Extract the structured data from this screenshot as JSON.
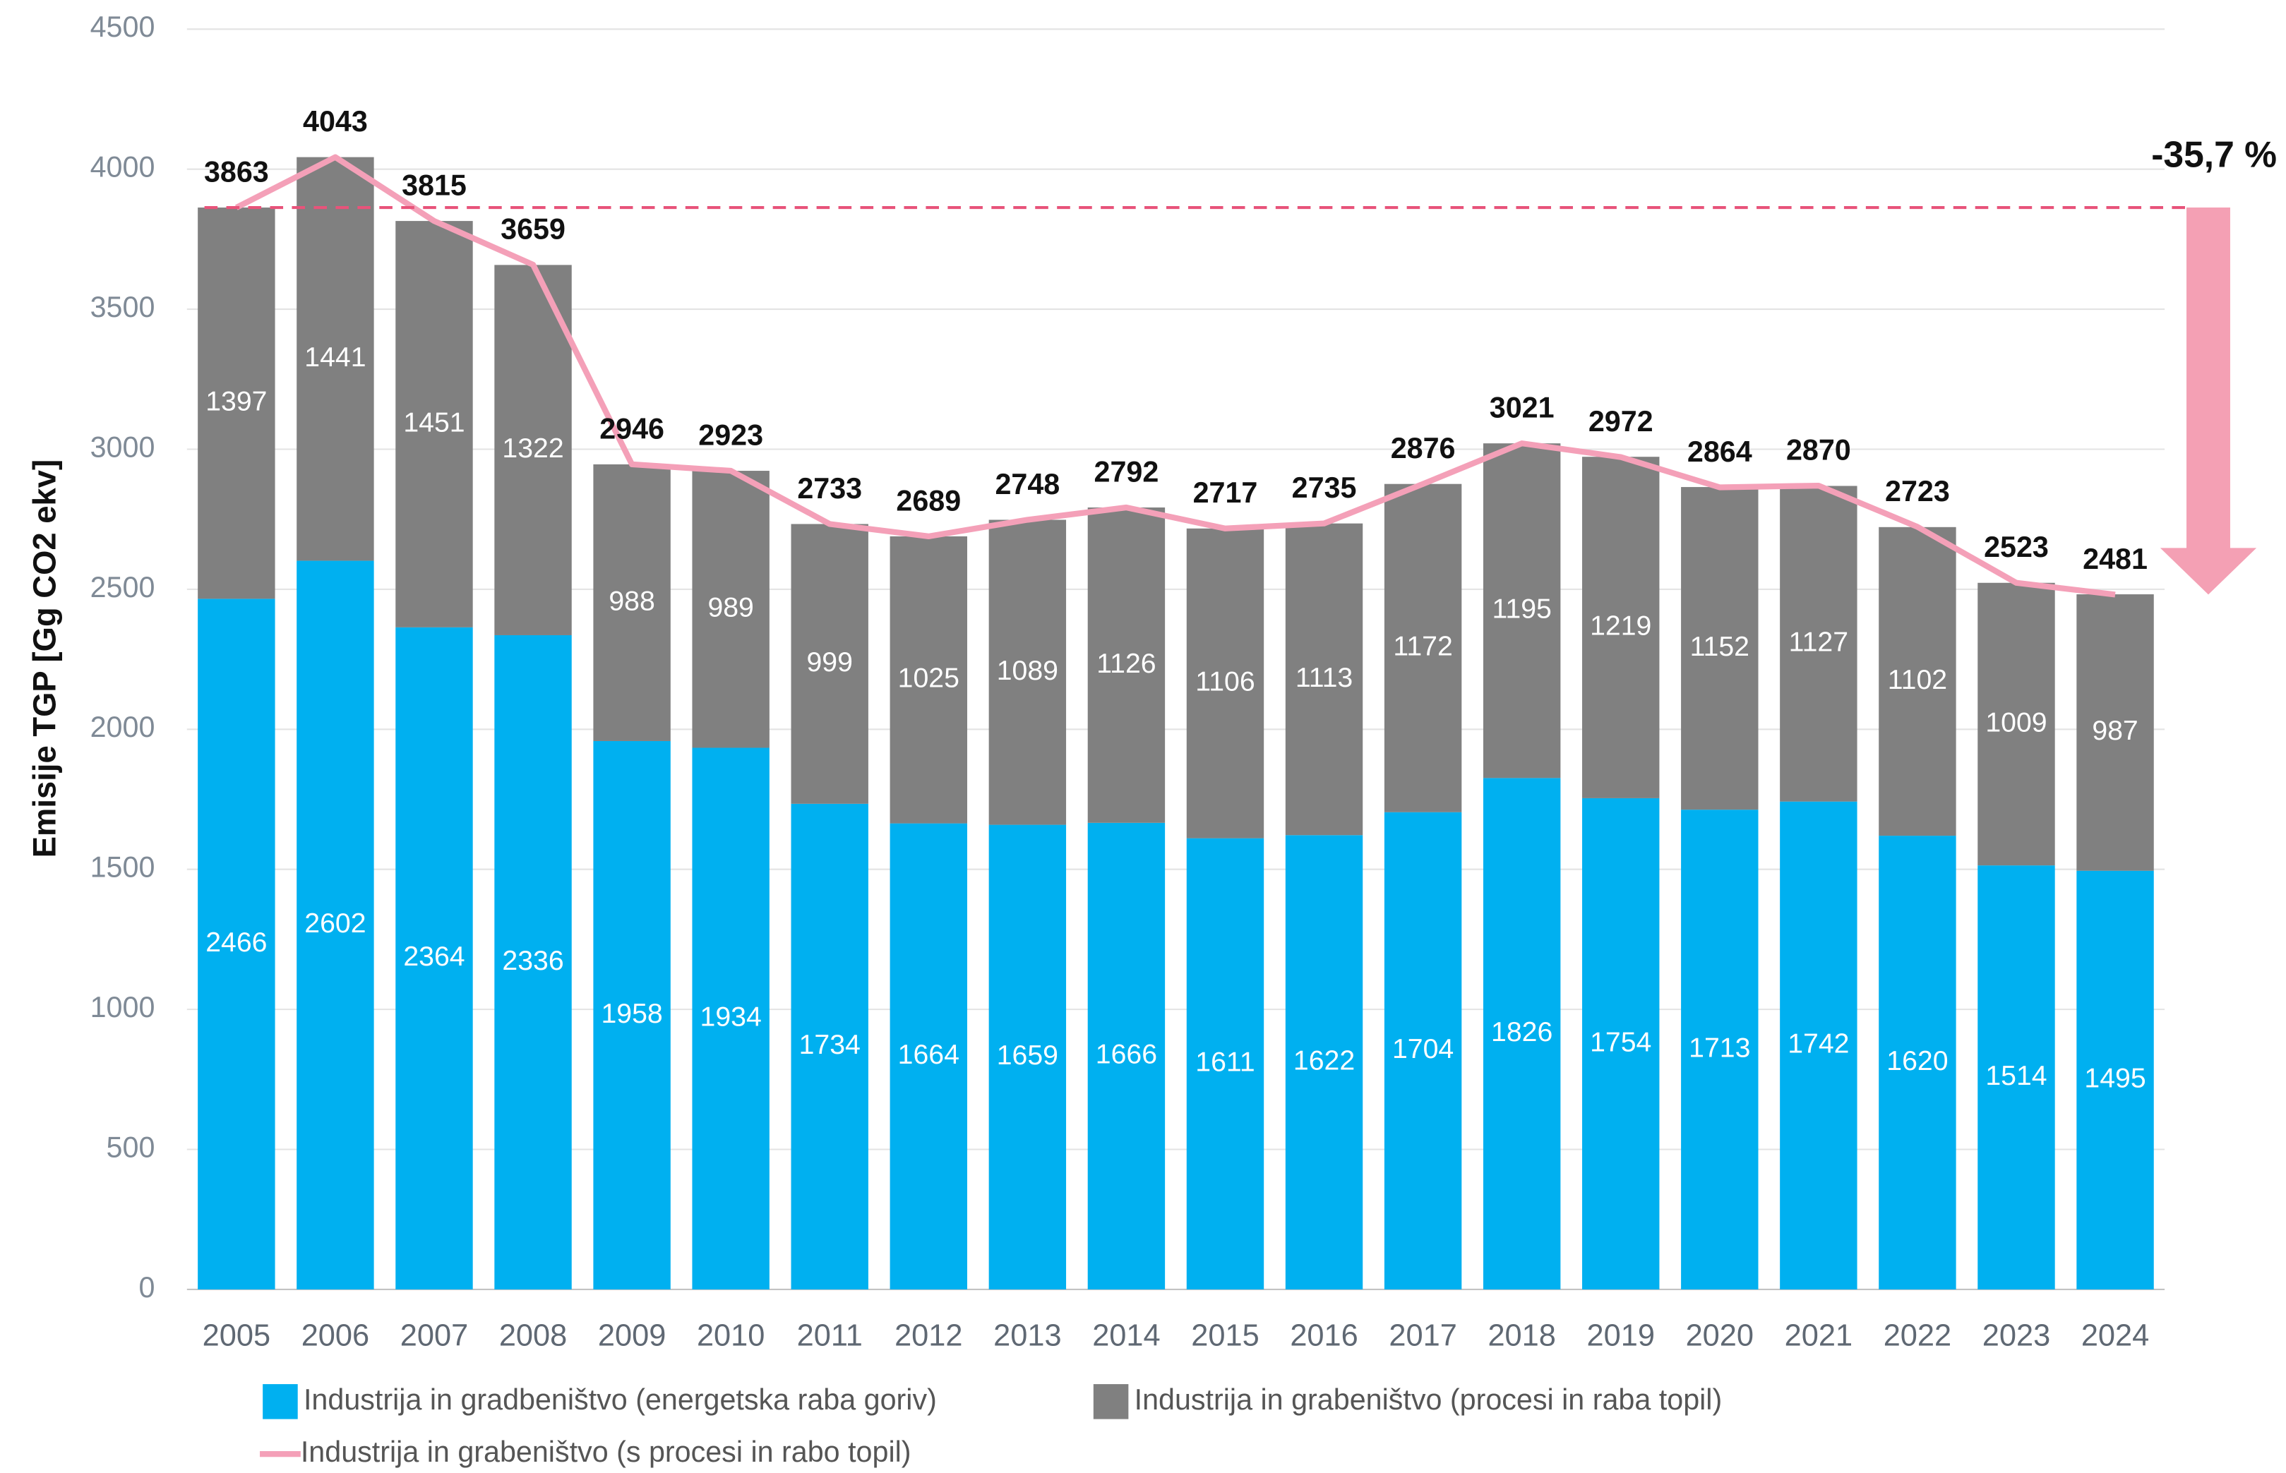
{
  "chart_data": {
    "type": "bar",
    "stacked": true,
    "ylabel": "Emisije TGP [Gg CO2 ekv]",
    "annotation": "-35,7 %",
    "categories": [
      "2005",
      "2006",
      "2007",
      "2008",
      "2009",
      "2010",
      "2011",
      "2012",
      "2013",
      "2014",
      "2015",
      "2016",
      "2017",
      "2018",
      "2019",
      "2020",
      "2021",
      "2022",
      "2023",
      "2024"
    ],
    "series": [
      {
        "name": "Industrija in gradbeništvo (energetska raba goriv)",
        "type": "bar",
        "color": "#00b0f0",
        "values": [
          2466,
          2602,
          2364,
          2336,
          1958,
          1934,
          1734,
          1664,
          1659,
          1666,
          1611,
          1622,
          1704,
          1826,
          1754,
          1713,
          1742,
          1620,
          1514,
          1495
        ]
      },
      {
        "name": "Industrija in grabeništvo (procesi in raba topil)",
        "type": "bar",
        "color": "#808080",
        "values": [
          1397,
          1441,
          1451,
          1322,
          988,
          989,
          999,
          1025,
          1089,
          1126,
          1106,
          1113,
          1172,
          1195,
          1219,
          1152,
          1127,
          1102,
          1009,
          987
        ]
      },
      {
        "name": "Industrija in grabeništvo (s procesi in rabo topil)",
        "type": "line",
        "color": "#f4a0b8",
        "values": [
          3863,
          4043,
          3815,
          3659,
          2946,
          2923,
          2733,
          2689,
          2748,
          2792,
          2717,
          2735,
          2876,
          3021,
          2972,
          2864,
          2870,
          2723,
          2523,
          2481
        ]
      }
    ],
    "ylim": [
      0,
      4500
    ],
    "yticks": [
      0,
      500,
      1000,
      1500,
      2000,
      2500,
      3000,
      3500,
      4000,
      4500
    ],
    "grid": true,
    "reference_color": "#e8537a",
    "arrow_color": "#f4a0b4"
  }
}
